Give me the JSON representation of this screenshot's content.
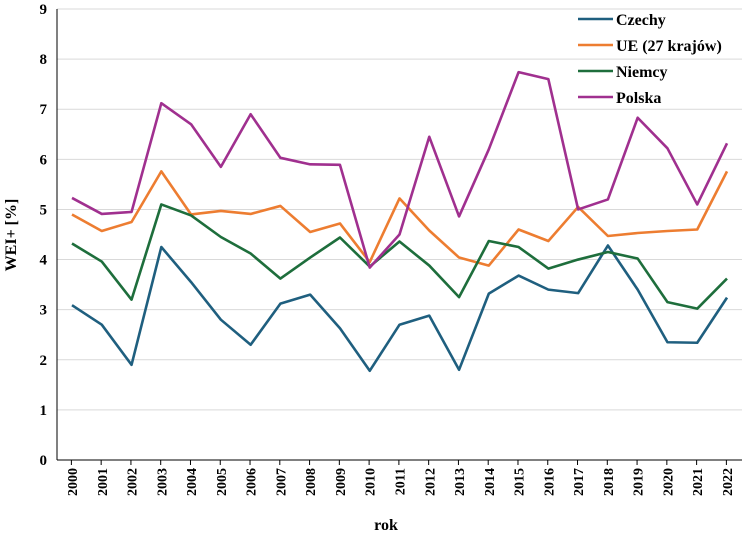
{
  "chart_data": {
    "type": "line",
    "xlabel": "rok",
    "ylabel": "WEI+ [%]",
    "ylim": [
      0,
      9
    ],
    "yticks": [
      0,
      1,
      2,
      3,
      4,
      5,
      6,
      7,
      8,
      9
    ],
    "grid": true,
    "legend": "top-right",
    "categories": [
      "2000",
      "2001",
      "2002",
      "2003",
      "2004",
      "2005",
      "2006",
      "2007",
      "2008",
      "2009",
      "2010",
      "2011",
      "2012",
      "2013",
      "2014",
      "2015",
      "2016",
      "2017",
      "2018",
      "2019",
      "2020",
      "2021",
      "2022"
    ],
    "series": [
      {
        "name": "Czechy",
        "color": "#1f5f7f",
        "values": [
          3.09,
          2.7,
          1.9,
          4.25,
          3.55,
          2.8,
          2.3,
          3.12,
          3.3,
          2.63,
          1.78,
          2.7,
          2.88,
          1.8,
          3.32,
          3.68,
          3.4,
          3.33,
          4.28,
          3.4,
          2.35,
          2.34,
          3.24
        ]
      },
      {
        "name": "UE (27 krajów)",
        "color": "#ed7d31",
        "values": [
          4.9,
          4.57,
          4.75,
          5.76,
          4.9,
          4.97,
          4.91,
          5.07,
          4.55,
          4.72,
          3.95,
          5.22,
          4.58,
          4.04,
          3.88,
          4.6,
          4.37,
          5.05,
          4.47,
          4.53,
          4.57,
          4.6,
          5.76
        ]
      },
      {
        "name": "Niemcy",
        "color": "#1e6e3c",
        "values": [
          4.32,
          3.96,
          3.2,
          5.1,
          4.88,
          4.45,
          4.12,
          3.62,
          4.04,
          4.44,
          3.86,
          4.36,
          3.88,
          3.25,
          4.37,
          4.25,
          3.82,
          4.0,
          4.15,
          4.02,
          3.15,
          3.02,
          3.62
        ]
      },
      {
        "name": "Polska",
        "color": "#a0308f",
        "values": [
          5.23,
          4.91,
          4.95,
          7.12,
          6.7,
          5.85,
          6.9,
          6.03,
          5.9,
          5.89,
          3.84,
          4.5,
          6.45,
          4.86,
          6.2,
          7.74,
          7.6,
          5.0,
          5.2,
          6.83,
          6.22,
          5.1,
          6.32
        ]
      }
    ]
  }
}
